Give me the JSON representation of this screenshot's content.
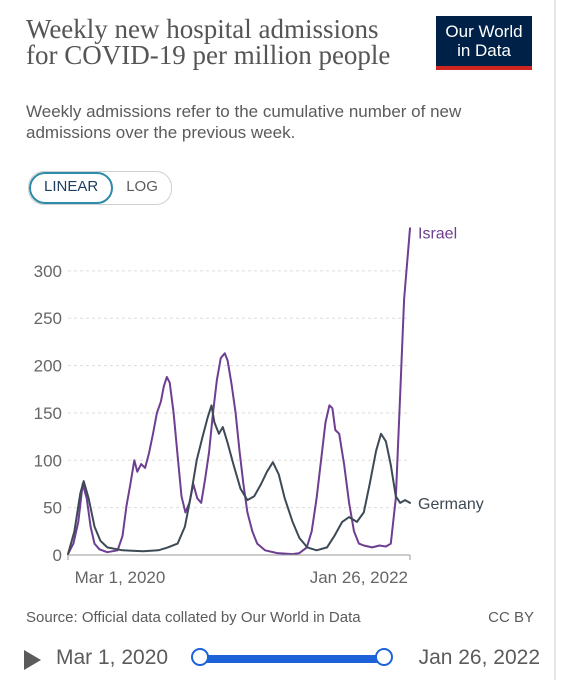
{
  "header": {
    "title": "Weekly new hospital admissions for COVID-19 per million people",
    "subtitle": "Weekly admissions refer to the cumulative number of new admissions over the previous week.",
    "logo_line1": "Our World",
    "logo_line2": "in Data",
    "logo_color": "#002147",
    "logo_accent": "#ce261e"
  },
  "scale_toggle": {
    "linear_label": "LINEAR",
    "log_label": "LOG",
    "selected": "LINEAR"
  },
  "chart_data": {
    "type": "line",
    "title": "Weekly new hospital admissions for COVID-19 per million people",
    "ylim": [
      0,
      340
    ],
    "yticks": [
      0,
      50,
      100,
      150,
      200,
      250,
      300
    ],
    "ytick_labels": [
      "0",
      "50",
      "100",
      "150",
      "200",
      "250",
      "300"
    ],
    "x_range": [
      "2020-03-01",
      "2022-01-26"
    ],
    "xtick_labels": [
      "Mar 1, 2020",
      "Jan 26, 2022"
    ],
    "grid": "horizontal dashed",
    "legend": "direct labels at line ends",
    "series": [
      {
        "name": "Israel",
        "color": "#6d3e91",
        "points": [
          [
            "2020-03-01",
            1
          ],
          [
            "2020-03-12",
            12
          ],
          [
            "2020-03-22",
            35
          ],
          [
            "2020-03-31",
            75
          ],
          [
            "2020-04-08",
            60
          ],
          [
            "2020-04-16",
            30
          ],
          [
            "2020-04-24",
            12
          ],
          [
            "2020-05-04",
            6
          ],
          [
            "2020-05-20",
            3
          ],
          [
            "2020-06-10",
            5
          ],
          [
            "2020-06-20",
            20
          ],
          [
            "2020-06-28",
            52
          ],
          [
            "2020-07-06",
            75
          ],
          [
            "2020-07-14",
            100
          ],
          [
            "2020-07-20",
            88
          ],
          [
            "2020-07-28",
            96
          ],
          [
            "2020-08-05",
            92
          ],
          [
            "2020-08-13",
            108
          ],
          [
            "2020-08-21",
            128
          ],
          [
            "2020-08-29",
            150
          ],
          [
            "2020-09-06",
            162
          ],
          [
            "2020-09-12",
            178
          ],
          [
            "2020-09-18",
            188
          ],
          [
            "2020-09-24",
            182
          ],
          [
            "2020-10-02",
            150
          ],
          [
            "2020-10-10",
            105
          ],
          [
            "2020-10-18",
            62
          ],
          [
            "2020-10-26",
            45
          ],
          [
            "2020-11-03",
            55
          ],
          [
            "2020-11-11",
            75
          ],
          [
            "2020-11-19",
            60
          ],
          [
            "2020-11-27",
            55
          ],
          [
            "2020-12-05",
            80
          ],
          [
            "2020-12-13",
            108
          ],
          [
            "2020-12-21",
            150
          ],
          [
            "2020-12-29",
            185
          ],
          [
            "2021-01-06",
            208
          ],
          [
            "2021-01-14",
            213
          ],
          [
            "2021-01-20",
            205
          ],
          [
            "2021-01-28",
            180
          ],
          [
            "2021-02-05",
            150
          ],
          [
            "2021-02-13",
            110
          ],
          [
            "2021-02-21",
            75
          ],
          [
            "2021-03-01",
            45
          ],
          [
            "2021-03-11",
            25
          ],
          [
            "2021-03-21",
            12
          ],
          [
            "2021-04-06",
            5
          ],
          [
            "2021-05-01",
            2
          ],
          [
            "2021-06-01",
            1
          ],
          [
            "2021-06-15",
            2
          ],
          [
            "2021-06-30",
            8
          ],
          [
            "2021-07-10",
            25
          ],
          [
            "2021-07-20",
            60
          ],
          [
            "2021-07-30",
            105
          ],
          [
            "2021-08-07",
            140
          ],
          [
            "2021-08-15",
            158
          ],
          [
            "2021-08-21",
            155
          ],
          [
            "2021-08-27",
            132
          ],
          [
            "2021-09-04",
            128
          ],
          [
            "2021-09-14",
            95
          ],
          [
            "2021-09-24",
            55
          ],
          [
            "2021-10-04",
            25
          ],
          [
            "2021-10-14",
            12
          ],
          [
            "2021-10-24",
            10
          ],
          [
            "2021-11-10",
            8
          ],
          [
            "2021-11-25",
            10
          ],
          [
            "2021-12-08",
            9
          ],
          [
            "2021-12-18",
            12
          ],
          [
            "2021-12-28",
            60
          ],
          [
            "2022-01-06",
            170
          ],
          [
            "2022-01-14",
            270
          ],
          [
            "2022-01-26",
            345
          ]
        ]
      },
      {
        "name": "Germany",
        "color": "#3d4a55",
        "points": [
          [
            "2020-03-01",
            1
          ],
          [
            "2020-03-14",
            25
          ],
          [
            "2020-03-26",
            65
          ],
          [
            "2020-04-02",
            78
          ],
          [
            "2020-04-12",
            60
          ],
          [
            "2020-04-24",
            30
          ],
          [
            "2020-05-06",
            15
          ],
          [
            "2020-05-20",
            8
          ],
          [
            "2020-06-20",
            5
          ],
          [
            "2020-08-01",
            4
          ],
          [
            "2020-09-01",
            5
          ],
          [
            "2020-09-20",
            8
          ],
          [
            "2020-10-10",
            12
          ],
          [
            "2020-10-25",
            30
          ],
          [
            "2020-11-05",
            60
          ],
          [
            "2020-11-18",
            100
          ],
          [
            "2020-11-30",
            125
          ],
          [
            "2020-12-10",
            145
          ],
          [
            "2020-12-18",
            158
          ],
          [
            "2020-12-24",
            140
          ],
          [
            "2021-01-02",
            128
          ],
          [
            "2021-01-10",
            135
          ],
          [
            "2021-01-20",
            118
          ],
          [
            "2021-02-01",
            95
          ],
          [
            "2021-02-15",
            70
          ],
          [
            "2021-03-01",
            58
          ],
          [
            "2021-03-15",
            62
          ],
          [
            "2021-03-29",
            75
          ],
          [
            "2021-04-10",
            88
          ],
          [
            "2021-04-22",
            98
          ],
          [
            "2021-05-04",
            85
          ],
          [
            "2021-05-16",
            60
          ],
          [
            "2021-06-01",
            35
          ],
          [
            "2021-06-15",
            18
          ],
          [
            "2021-07-01",
            8
          ],
          [
            "2021-07-20",
            5
          ],
          [
            "2021-08-10",
            8
          ],
          [
            "2021-08-25",
            20
          ],
          [
            "2021-09-10",
            35
          ],
          [
            "2021-09-24",
            40
          ],
          [
            "2021-10-10",
            35
          ],
          [
            "2021-10-24",
            45
          ],
          [
            "2021-11-05",
            75
          ],
          [
            "2021-11-18",
            110
          ],
          [
            "2021-11-28",
            128
          ],
          [
            "2021-12-08",
            120
          ],
          [
            "2021-12-18",
            95
          ],
          [
            "2021-12-28",
            62
          ],
          [
            "2022-01-06",
            55
          ],
          [
            "2022-01-16",
            58
          ],
          [
            "2022-01-26",
            55
          ]
        ]
      }
    ]
  },
  "footer": {
    "source": "Source: Official data collated by Our World in Data",
    "license": "CC BY"
  },
  "timeline": {
    "start_label": "Mar 1, 2020",
    "end_label": "Jan 26, 2022",
    "accent": "#1d62d8"
  }
}
